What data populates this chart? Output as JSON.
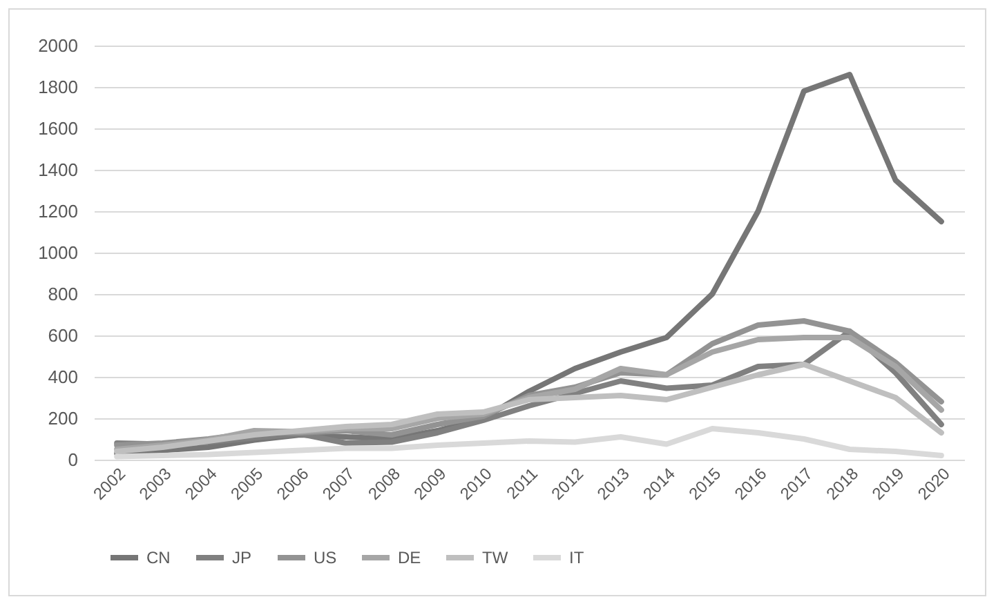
{
  "chart_data": {
    "type": "line",
    "categories": [
      "2002",
      "2003",
      "2004",
      "2005",
      "2006",
      "2007",
      "2008",
      "2009",
      "2010",
      "2011",
      "2012",
      "2013",
      "2014",
      "2015",
      "2016",
      "2017",
      "2018",
      "2019",
      "2020"
    ],
    "series": [
      {
        "name": "CN",
        "color": "#767676",
        "values": [
          30,
          45,
          60,
          95,
          120,
          110,
          100,
          140,
          200,
          330,
          440,
          520,
          590,
          800,
          1200,
          1780,
          1860,
          1350,
          1150
        ]
      },
      {
        "name": "JP",
        "color": "#808080",
        "values": [
          80,
          75,
          85,
          105,
          125,
          80,
          85,
          130,
          190,
          260,
          320,
          380,
          345,
          360,
          450,
          460,
          620,
          420,
          170
        ]
      },
      {
        "name": "US",
        "color": "#939393",
        "values": [
          70,
          80,
          100,
          130,
          130,
          140,
          120,
          170,
          210,
          310,
          350,
          420,
          410,
          560,
          650,
          670,
          620,
          470,
          280
        ]
      },
      {
        "name": "DE",
        "color": "#a6a6a6",
        "values": [
          50,
          70,
          95,
          140,
          135,
          150,
          150,
          200,
          220,
          300,
          340,
          440,
          410,
          520,
          580,
          590,
          590,
          450,
          240
        ]
      },
      {
        "name": "TW",
        "color": "#bfbfbf",
        "values": [
          40,
          60,
          90,
          120,
          140,
          160,
          170,
          220,
          230,
          290,
          300,
          310,
          290,
          350,
          410,
          460,
          380,
          300,
          130
        ]
      },
      {
        "name": "IT",
        "color": "#d9d9d9",
        "values": [
          15,
          20,
          25,
          35,
          45,
          55,
          55,
          70,
          80,
          90,
          85,
          110,
          75,
          150,
          130,
          100,
          50,
          40,
          20
        ]
      }
    ],
    "ylim": [
      0,
      2000
    ],
    "yticks": [
      0,
      200,
      400,
      600,
      800,
      1000,
      1200,
      1400,
      1600,
      1800,
      2000
    ],
    "grid": "y",
    "legend": "bottom",
    "line_style": "solid"
  }
}
